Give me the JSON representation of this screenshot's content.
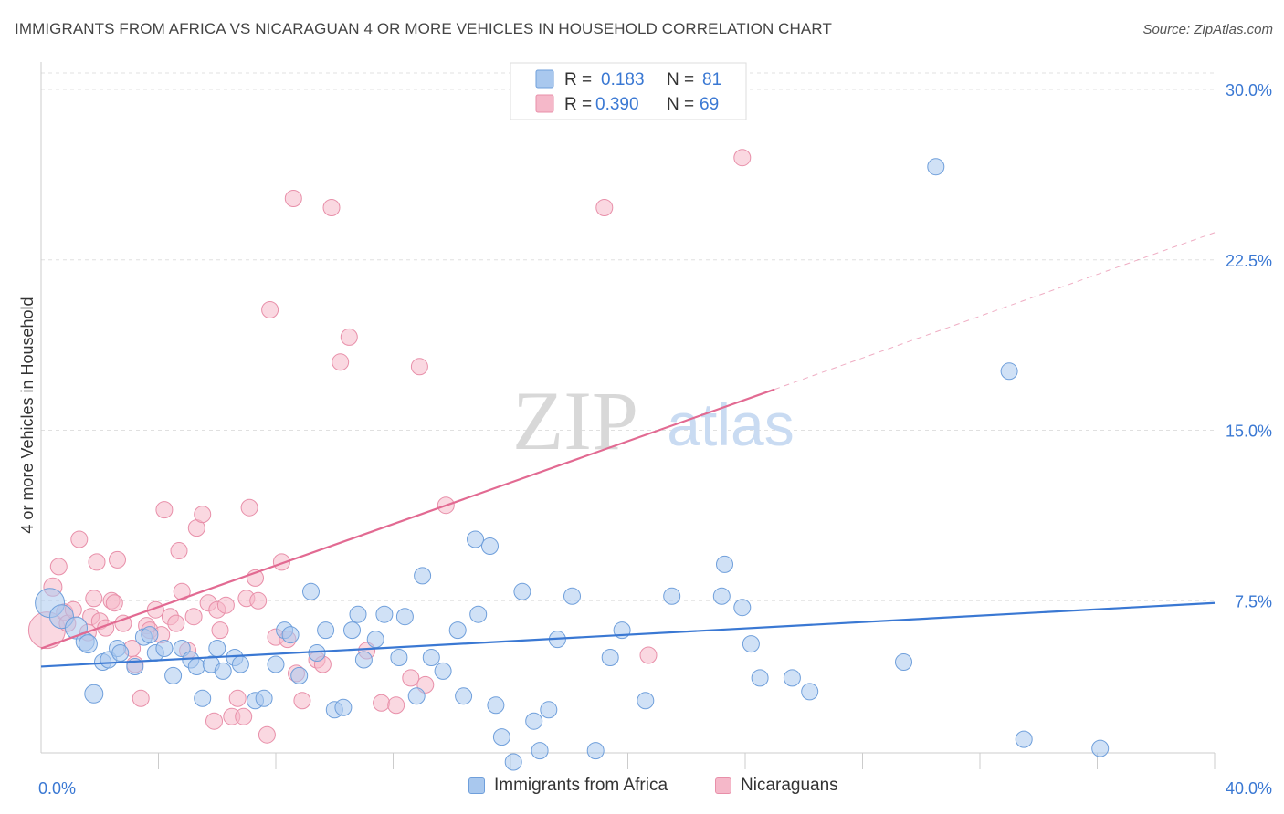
{
  "title": "IMMIGRANTS FROM AFRICA VS NICARAGUAN 4 OR MORE VEHICLES IN HOUSEHOLD CORRELATION CHART",
  "source": "Source: ZipAtlas.com",
  "watermark": {
    "zip": "ZIP",
    "atlas": "atlas"
  },
  "legend_top": [
    {
      "r_label": "R =",
      "r_value": "0.183",
      "n_label": "N =",
      "n_value": "81"
    },
    {
      "r_label": "R =",
      "r_value": "0.390",
      "n_label": "N =",
      "n_value": "69"
    }
  ],
  "legend_bottom": [
    {
      "label": "Immigrants from Africa"
    },
    {
      "label": "Nicaraguans"
    }
  ],
  "colors": {
    "africa_fill": "#a9c8ee",
    "africa_stroke": "#6f9fdb",
    "africa_line": "#3a78d3",
    "nicaragua_fill": "#f5b8c9",
    "nicaragua_stroke": "#e88fa9",
    "nicaragua_line": "#e26a92",
    "axis_label_blue": "#3a78d3",
    "grid": "#e0e0e0"
  },
  "chart_data": {
    "type": "scatter",
    "title": "IMMIGRANTS FROM AFRICA VS NICARAGUAN 4 OR MORE VEHICLES IN HOUSEHOLD CORRELATION CHART",
    "xlabel": "",
    "ylabel": "4 or more Vehicles in Household",
    "xlim": [
      0,
      40
    ],
    "ylim": [
      0,
      30
    ],
    "x_tick_labels": [
      {
        "value": 0,
        "label": "0.0%"
      },
      {
        "value": 40,
        "label": "40.0%"
      }
    ],
    "x_minor_ticks": [
      4,
      8,
      12,
      16,
      20,
      24,
      28,
      32,
      36
    ],
    "y_ticks": [
      {
        "value": 7.5,
        "label": "7.5%"
      },
      {
        "value": 15,
        "label": "15.0%"
      },
      {
        "value": 22.5,
        "label": "22.5%"
      },
      {
        "value": 30,
        "label": "30.0%"
      }
    ],
    "grid": true,
    "legend_position": "top-center",
    "series": [
      {
        "name": "Immigrants from Africa",
        "color": "#a9c8ee",
        "trend": {
          "x0": 0,
          "y0": 4.6,
          "x1": 40,
          "y1": 7.4,
          "dashed_from": null
        },
        "points": [
          [
            0.3,
            7.4,
            16
          ],
          [
            0.7,
            6.8,
            13
          ],
          [
            1.2,
            6.3,
            12
          ],
          [
            1.5,
            5.7,
            10
          ],
          [
            1.6,
            5.6,
            10
          ],
          [
            1.8,
            3.4,
            10
          ],
          [
            2.1,
            4.8,
            9
          ],
          [
            2.3,
            4.9,
            9
          ],
          [
            2.6,
            5.4,
            9
          ],
          [
            2.7,
            5.2,
            9
          ],
          [
            3.2,
            4.6,
            9
          ],
          [
            3.5,
            5.9,
            9
          ],
          [
            3.7,
            6.0,
            9
          ],
          [
            3.9,
            5.2,
            9
          ],
          [
            4.2,
            5.4,
            9
          ],
          [
            4.5,
            4.2,
            9
          ],
          [
            4.8,
            5.4,
            9
          ],
          [
            5.1,
            4.9,
            9
          ],
          [
            5.3,
            4.6,
            9
          ],
          [
            5.5,
            3.2,
            9
          ],
          [
            5.8,
            4.7,
            9
          ],
          [
            6.0,
            5.4,
            9
          ],
          [
            6.2,
            4.4,
            9
          ],
          [
            6.6,
            5.0,
            9
          ],
          [
            6.8,
            4.7,
            9
          ],
          [
            7.3,
            3.1,
            9
          ],
          [
            7.6,
            3.2,
            9
          ],
          [
            8.0,
            4.7,
            9
          ],
          [
            8.3,
            6.2,
            9
          ],
          [
            8.5,
            6.0,
            9
          ],
          [
            8.8,
            4.2,
            9
          ],
          [
            9.2,
            7.9,
            9
          ],
          [
            9.4,
            5.2,
            9
          ],
          [
            9.7,
            6.2,
            9
          ],
          [
            10.0,
            2.7,
            9
          ],
          [
            10.3,
            2.8,
            9
          ],
          [
            10.6,
            6.2,
            9
          ],
          [
            10.8,
            6.9,
            9
          ],
          [
            11.0,
            4.9,
            9
          ],
          [
            11.4,
            5.8,
            9
          ],
          [
            11.7,
            6.9,
            9
          ],
          [
            12.2,
            5.0,
            9
          ],
          [
            12.4,
            6.8,
            9
          ],
          [
            12.8,
            3.3,
            9
          ],
          [
            13.0,
            8.6,
            9
          ],
          [
            13.3,
            5.0,
            9
          ],
          [
            13.7,
            4.4,
            9
          ],
          [
            14.2,
            6.2,
            9
          ],
          [
            14.4,
            3.3,
            9
          ],
          [
            14.8,
            10.2,
            9
          ],
          [
            14.9,
            6.9,
            9
          ],
          [
            15.3,
            9.9,
            9
          ],
          [
            15.5,
            2.9,
            9
          ],
          [
            15.7,
            1.5,
            9
          ],
          [
            16.1,
            0.4,
            9
          ],
          [
            16.4,
            7.9,
            9
          ],
          [
            16.8,
            2.2,
            9
          ],
          [
            17.0,
            0.9,
            9
          ],
          [
            17.3,
            2.7,
            9
          ],
          [
            17.6,
            5.8,
            9
          ],
          [
            18.1,
            7.7,
            9
          ],
          [
            18.9,
            0.9,
            9
          ],
          [
            19.4,
            5.0,
            9
          ],
          [
            19.8,
            6.2,
            9
          ],
          [
            20.6,
            3.1,
            9
          ],
          [
            21.5,
            7.7,
            9
          ],
          [
            23.2,
            7.7,
            9
          ],
          [
            23.3,
            9.1,
            9
          ],
          [
            23.9,
            7.2,
            9
          ],
          [
            24.2,
            5.6,
            9
          ],
          [
            24.5,
            4.1,
            9
          ],
          [
            25.6,
            4.1,
            9
          ],
          [
            26.2,
            3.5,
            9
          ],
          [
            29.4,
            4.8,
            9
          ],
          [
            30.5,
            26.6,
            9
          ],
          [
            33.0,
            17.6,
            9
          ],
          [
            33.5,
            1.4,
            9
          ],
          [
            36.1,
            1.0,
            9
          ]
        ]
      },
      {
        "name": "Nicaraguans",
        "color": "#f5b8c9",
        "trend": {
          "x0": 0,
          "y0": 5.4,
          "x1": 25,
          "y1": 16.8,
          "dashed_from": 25,
          "dashed_x1": 40,
          "dashed_y1": 23.7
        },
        "points": [
          [
            0.2,
            6.2,
            20
          ],
          [
            0.4,
            8.1,
            10
          ],
          [
            0.6,
            9.0,
            9
          ],
          [
            0.8,
            7.0,
            9
          ],
          [
            0.9,
            6.5,
            9
          ],
          [
            1.1,
            7.1,
            9
          ],
          [
            1.3,
            10.2,
            9
          ],
          [
            1.6,
            6.1,
            9
          ],
          [
            1.7,
            6.8,
            9
          ],
          [
            1.8,
            7.6,
            9
          ],
          [
            1.9,
            9.2,
            9
          ],
          [
            2.0,
            6.6,
            9
          ],
          [
            2.2,
            6.3,
            9
          ],
          [
            2.4,
            7.5,
            9
          ],
          [
            2.5,
            7.4,
            9
          ],
          [
            2.6,
            9.3,
            9
          ],
          [
            2.8,
            6.5,
            9
          ],
          [
            3.1,
            5.4,
            9
          ],
          [
            3.2,
            4.7,
            9
          ],
          [
            3.4,
            3.2,
            9
          ],
          [
            3.6,
            6.4,
            9
          ],
          [
            3.7,
            6.2,
            9
          ],
          [
            3.9,
            7.1,
            9
          ],
          [
            4.1,
            6.0,
            9
          ],
          [
            4.2,
            11.5,
            9
          ],
          [
            4.4,
            6.8,
            9
          ],
          [
            4.6,
            6.5,
            9
          ],
          [
            4.7,
            9.7,
            9
          ],
          [
            4.8,
            7.9,
            9
          ],
          [
            5.0,
            5.3,
            9
          ],
          [
            5.2,
            6.8,
            9
          ],
          [
            5.3,
            10.7,
            9
          ],
          [
            5.5,
            11.3,
            9
          ],
          [
            5.7,
            7.4,
            9
          ],
          [
            5.9,
            2.2,
            9
          ],
          [
            6.0,
            7.1,
            9
          ],
          [
            6.1,
            6.2,
            9
          ],
          [
            6.3,
            7.3,
            9
          ],
          [
            6.5,
            2.4,
            9
          ],
          [
            6.7,
            3.2,
            9
          ],
          [
            6.9,
            2.4,
            9
          ],
          [
            7.0,
            7.6,
            9
          ],
          [
            7.1,
            11.6,
            9
          ],
          [
            7.3,
            8.5,
            9
          ],
          [
            7.4,
            7.5,
            9
          ],
          [
            7.7,
            1.6,
            9
          ],
          [
            7.8,
            20.3,
            9
          ],
          [
            8.0,
            5.9,
            9
          ],
          [
            8.2,
            9.2,
            9
          ],
          [
            8.4,
            5.8,
            9
          ],
          [
            8.6,
            25.2,
            9
          ],
          [
            8.7,
            4.3,
            9
          ],
          [
            8.9,
            3.1,
            9
          ],
          [
            9.4,
            4.9,
            9
          ],
          [
            9.6,
            4.7,
            9
          ],
          [
            9.9,
            24.8,
            9
          ],
          [
            10.2,
            18.0,
            9
          ],
          [
            10.5,
            19.1,
            9
          ],
          [
            11.1,
            5.3,
            9
          ],
          [
            11.6,
            3.0,
            9
          ],
          [
            12.1,
            2.9,
            9
          ],
          [
            12.6,
            4.1,
            9
          ],
          [
            12.9,
            17.8,
            9
          ],
          [
            13.1,
            3.8,
            9
          ],
          [
            13.8,
            11.7,
            9
          ],
          [
            19.2,
            24.8,
            9
          ],
          [
            20.7,
            5.1,
            9
          ],
          [
            23.9,
            27.0,
            9
          ]
        ]
      }
    ]
  }
}
